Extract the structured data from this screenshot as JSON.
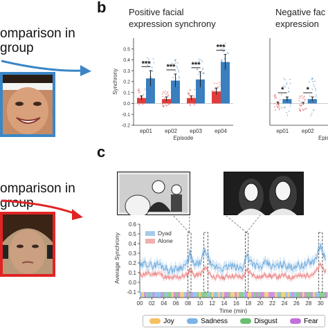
{
  "panel_a": {
    "top_text_line1": "omparison in",
    "top_text_line2": "group",
    "bottom_text_line1": "omparison in",
    "bottom_text_line2": "group",
    "top_frame_color": "#3b86c6",
    "bottom_frame_color": "#e02424",
    "arrow_top_color": "#3b86c6",
    "arrow_bottom_color": "#e02424"
  },
  "panel_b": {
    "letter": "b",
    "colors": {
      "alone": "#e03c3c",
      "dyad": "#3a7fbf"
    }
  },
  "panel_c": {
    "letter": "c"
  },
  "chart_data": [
    {
      "type": "bar",
      "title": "Positive facial expression synchrony",
      "title_line1": "Positive facial",
      "title_line2": "expression synchrony",
      "xlabel": "Episode",
      "ylabel": "Synchrony",
      "categories": [
        "ep01",
        "ep02",
        "ep03",
        "ep04"
      ],
      "ylim": [
        -0.2,
        0.6
      ],
      "yticks": [
        "-0.2",
        "-0.1",
        "0.0",
        "0.1",
        "0.2",
        "0.3",
        "0.4",
        "0.5"
      ],
      "series": [
        {
          "values": [
            0.05,
            0.04,
            0.05,
            0.11
          ],
          "errors": [
            0.02,
            0.02,
            0.02,
            0.03
          ]
        },
        {
          "values": [
            0.23,
            0.21,
            0.22,
            0.38
          ],
          "errors": [
            0.07,
            0.06,
            0.07,
            0.07
          ]
        }
      ],
      "significance": [
        "***",
        "***",
        "***",
        "***"
      ]
    },
    {
      "type": "bar",
      "title": "Negative facial expression synchrony",
      "title_line1": "Negative fac",
      "title_line2": "expression",
      "xlabel": "Episo",
      "categories": [
        "ep01",
        "ep02"
      ],
      "ylim": [
        -0.2,
        0.6
      ],
      "series": [
        {
          "values": [
            0.0,
            0.0
          ],
          "errors": [
            0.01,
            0.01
          ]
        },
        {
          "values": [
            0.04,
            0.04
          ],
          "errors": [
            0.02,
            0.02
          ]
        }
      ],
      "significance": [
        "*",
        "*"
      ]
    },
    {
      "type": "line",
      "xlabel": "Time (min)",
      "ylabel": "Average Synchrony",
      "xticks": [
        "00",
        "02",
        "04",
        "06",
        "08",
        "10",
        "12",
        "14",
        "16",
        "18",
        "20",
        "22",
        "24",
        "26",
        "28",
        "30"
      ],
      "xlim": [
        0,
        31
      ],
      "ylim": [
        -0.1,
        0.6
      ],
      "yticks": [
        "0.6",
        "0.5",
        "0.4",
        "0.3",
        "0.2",
        "0.1",
        "0.0",
        "-0.1"
      ],
      "legend": {
        "placement": "top-left",
        "entries": [
          "Dyad",
          "Alone"
        ]
      },
      "highlight_windows": [
        [
          8.0,
          8.5
        ],
        [
          10.6,
          11.3
        ],
        [
          17.5,
          18.0
        ],
        [
          29.7,
          30.3
        ]
      ],
      "series": [
        {
          "name": "Dyad",
          "color": "#6aa8dc",
          "x": [
            0,
            1,
            2,
            3,
            4,
            5,
            6,
            7,
            8,
            8.3,
            9,
            10,
            10.9,
            12,
            13,
            14,
            15,
            16,
            17,
            17.8,
            19,
            20,
            21,
            22,
            23,
            24,
            25,
            26,
            27,
            28,
            29,
            30,
            31
          ],
          "y": [
            0.15,
            0.2,
            0.17,
            0.19,
            0.16,
            0.12,
            0.14,
            0.16,
            0.2,
            0.3,
            0.17,
            0.2,
            0.33,
            0.15,
            0.16,
            0.14,
            0.17,
            0.15,
            0.14,
            0.28,
            0.18,
            0.15,
            0.2,
            0.16,
            0.17,
            0.19,
            0.15,
            0.18,
            0.17,
            0.2,
            0.22,
            0.38,
            0.2
          ]
        },
        {
          "name": "Alone",
          "color": "#e87878",
          "x": [
            0,
            1,
            2,
            3,
            4,
            5,
            6,
            7,
            8,
            8.3,
            9,
            10,
            10.9,
            12,
            13,
            14,
            15,
            16,
            17,
            17.8,
            19,
            20,
            21,
            22,
            23,
            24,
            25,
            26,
            27,
            28,
            29,
            30,
            31
          ],
          "y": [
            0.07,
            0.09,
            0.08,
            0.1,
            0.06,
            0.04,
            0.05,
            0.06,
            0.08,
            0.14,
            0.07,
            0.08,
            0.15,
            0.06,
            0.05,
            0.05,
            0.07,
            0.06,
            0.05,
            0.12,
            0.07,
            0.05,
            0.08,
            0.06,
            0.06,
            0.07,
            0.05,
            0.07,
            0.06,
            0.08,
            0.09,
            0.18,
            0.1
          ]
        }
      ]
    }
  ],
  "emotion_legend": {
    "items": [
      {
        "label": "Joy",
        "color": "#f4c060"
      },
      {
        "label": "Sadness",
        "color": "#7ab3e6"
      },
      {
        "label": "Disgust",
        "color": "#6bbd72"
      },
      {
        "label": "Fear",
        "color": "#c070d8"
      }
    ]
  }
}
